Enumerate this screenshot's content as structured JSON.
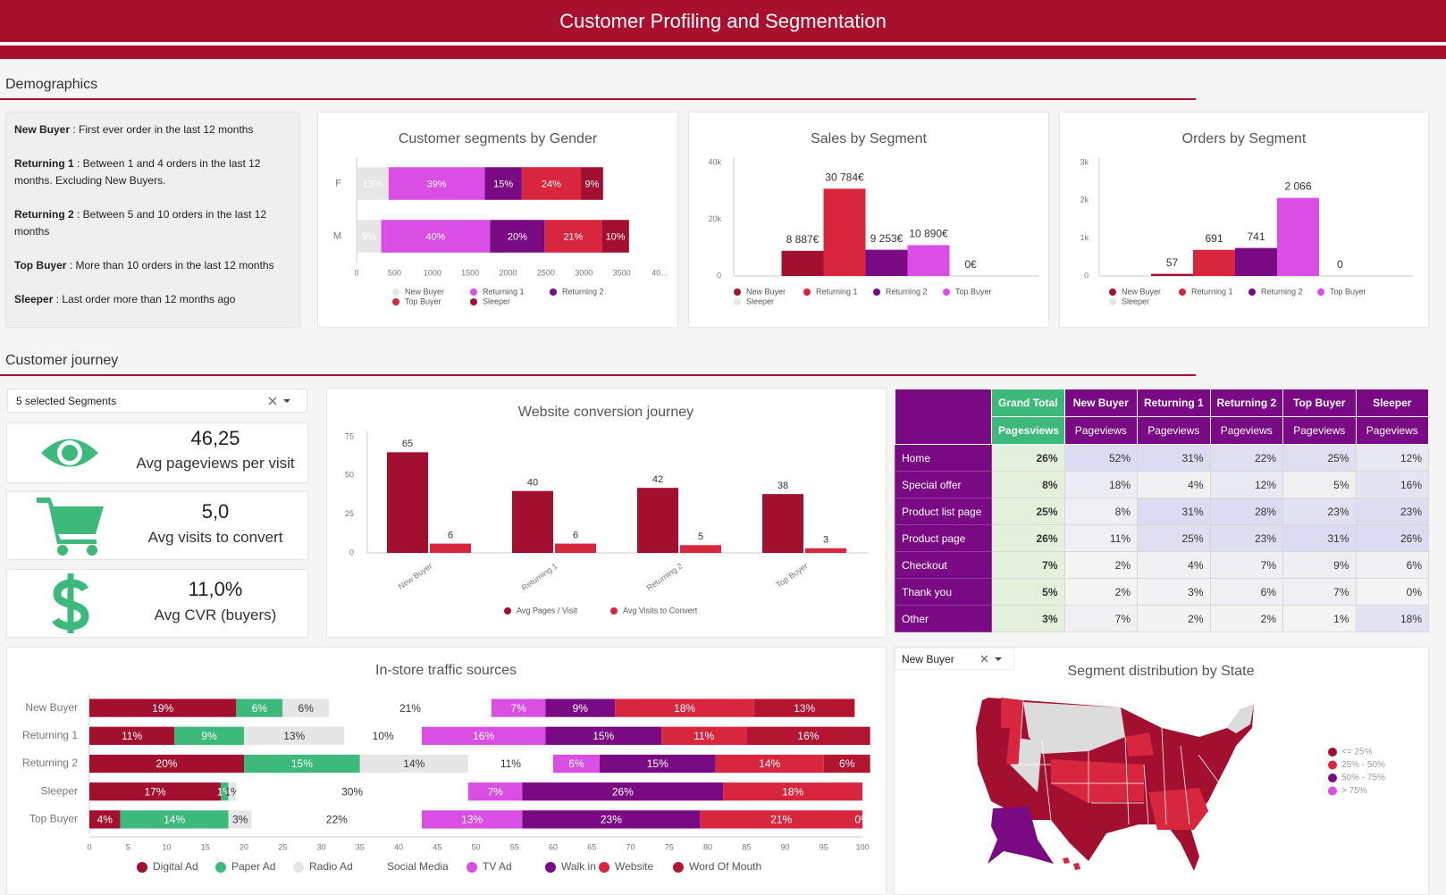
{
  "header": {
    "title": "Customer Profiling and Segmentation"
  },
  "sections": [
    "Demographics",
    "Customer journey"
  ],
  "definitions": [
    {
      "term": "New Buyer",
      "text": " : First ever order in the last 12 months"
    },
    {
      "term": "Returning 1",
      "text": " : Between 1 and 4 orders in the last 12 months. Excluding New Buyers."
    },
    {
      "term": "Returning 2",
      "text": " : Between 5 and 10 orders in the last 12 months"
    },
    {
      "term": "Top Buyer",
      "text": " : More than 10 orders in the last 12 months"
    },
    {
      "term": "Sleeper",
      "text": " : Last order more than 12 months ago"
    }
  ],
  "filters": {
    "segments": "5 selected Segments",
    "state_segment": "New Buyer"
  },
  "kpis": [
    {
      "value": "46,25",
      "label": "Avg pageviews per visit"
    },
    {
      "value": "5,0",
      "label": "Avg visits to convert"
    },
    {
      "value": "11,0%",
      "label": "Avg CVR (buyers)"
    }
  ],
  "chart_data": [
    {
      "type": "bar",
      "title": "Customer segments by Gender",
      "horizontal": true,
      "stacked": true,
      "categories": [
        "F",
        "M"
      ],
      "series": [
        {
          "name": "New Buyer",
          "color": "#e6e6e6",
          "values": [
            423,
            324
          ],
          "value_labels": [
            "13%",
            "9%"
          ]
        },
        {
          "name": "Returning 1",
          "color": "#d94fe3",
          "values": [
            1270,
            1439
          ],
          "value_labels": [
            "39%",
            "40%"
          ]
        },
        {
          "name": "Returning 2",
          "color": "#7a0a84",
          "values": [
            488,
            719
          ],
          "value_labels": [
            "15%",
            "20%"
          ]
        },
        {
          "name": "Top Buyer",
          "color": "#d7263d",
          "values": [
            781,
            755
          ],
          "value_labels": [
            "24%",
            "21%"
          ]
        },
        {
          "name": "Sleeper",
          "color": "#a3102f",
          "values": [
            293,
            360
          ],
          "value_labels": [
            "9%",
            "10%"
          ]
        }
      ],
      "xlim": [
        0,
        4000
      ],
      "xticks": [
        0,
        500,
        1000,
        1500,
        2000,
        2500,
        3000,
        3500,
        {
          "value": 4000,
          "label": "40..."
        }
      ],
      "legend": "bottom"
    },
    {
      "type": "bar",
      "title": "Sales by Segment",
      "categories": [
        "New Buyer",
        "Returning 1",
        "Returning 2",
        "Top Buyer",
        "Sleeper"
      ],
      "values": [
        8887,
        30784,
        9253,
        10890,
        0
      ],
      "value_labels": [
        "8 887€",
        "30 784€",
        "9 253€",
        "10 890€",
        "0€"
      ],
      "colors": [
        "#a3102f",
        "#d7263d",
        "#7a0a84",
        "#d94fe3",
        "#e6e6e6"
      ],
      "ylim": [
        0,
        40000
      ],
      "yticks": [
        0,
        {
          "value": 20000,
          "label": "20k"
        },
        {
          "value": 40000,
          "label": "40k"
        }
      ],
      "legend": "bottom"
    },
    {
      "type": "bar",
      "title": "Orders by Segment",
      "categories": [
        "New Buyer",
        "Returning 1",
        "Returning 2",
        "Top Buyer",
        "Sleeper"
      ],
      "values": [
        57,
        691,
        741,
        2066,
        0
      ],
      "value_labels": [
        "57",
        "691",
        "741",
        "2 066",
        "0"
      ],
      "colors": [
        "#a3102f",
        "#d7263d",
        "#7a0a84",
        "#d94fe3",
        "#e6e6e6"
      ],
      "ylim": [
        0,
        3000
      ],
      "yticks": [
        0,
        {
          "value": 1000,
          "label": "1k"
        },
        {
          "value": 2000,
          "label": "2k"
        },
        {
          "value": 3000,
          "label": "3k"
        }
      ],
      "legend": "bottom"
    },
    {
      "type": "bar",
      "title": "Website conversion journey",
      "categories": [
        "New Buyer",
        "Returning 1",
        "Returning 2",
        "Top Buyer"
      ],
      "series": [
        {
          "name": "Avg Pages / Visit",
          "color": "#a3102f",
          "values": [
            65,
            40,
            42,
            38
          ]
        },
        {
          "name": "Avg Visits to Convert",
          "color": "#d7263d",
          "values": [
            6,
            6,
            5,
            3
          ]
        }
      ],
      "ylim": [
        0,
        75
      ],
      "yticks": [
        0,
        25,
        50,
        75
      ],
      "legend": "bottom"
    },
    {
      "type": "bar",
      "title": "In-store traffic sources",
      "horizontal": true,
      "stacked": true,
      "categories": [
        "New Buyer",
        "Returning 1",
        "Returning 2",
        "Sleeper",
        "Top Buyer"
      ],
      "series": [
        {
          "name": "Digital Ad",
          "color": "#a3102f",
          "values": [
            19,
            11,
            20,
            17,
            4
          ],
          "value_labels": [
            "19%",
            "11%",
            "20%",
            "17%",
            "4%"
          ]
        },
        {
          "name": "Paper Ad",
          "color": "#3dba7b",
          "values": [
            6,
            9,
            15,
            1,
            14
          ],
          "value_labels": [
            "6%",
            "9%",
            "15%",
            "1%",
            "14%"
          ]
        },
        {
          "name": "Radio Ad",
          "color": "#e6e6e6",
          "values": [
            6,
            13,
            14,
            1,
            3
          ],
          "value_labels": [
            "6%",
            "13%",
            "14%",
            "1%",
            "3%"
          ]
        },
        {
          "name": "Social Media",
          "color": "#ffffff",
          "values": [
            21,
            10,
            11,
            30,
            22
          ],
          "value_labels": [
            "21%",
            "10%",
            "11%",
            "30%",
            "22%"
          ]
        },
        {
          "name": "TV Ad",
          "color": "#d94fe3",
          "values": [
            7,
            16,
            6,
            7,
            13
          ],
          "value_labels": [
            "7%",
            "16%",
            "6%",
            "7%",
            "13%"
          ]
        },
        {
          "name": "Walk in",
          "color": "#7a0a84",
          "values": [
            9,
            15,
            15,
            26,
            23
          ],
          "value_labels": [
            "9%",
            "15%",
            "15%",
            "26%",
            "23%"
          ]
        },
        {
          "name": "Website",
          "color": "#d7263d",
          "values": [
            18,
            11,
            14,
            18,
            21
          ],
          "value_labels": [
            "18%",
            "11%",
            "14%",
            "18%",
            "21%"
          ]
        },
        {
          "name": "Word Of Mouth",
          "color": "#b3142f",
          "values": [
            13,
            16,
            6,
            0,
            0
          ],
          "value_labels": [
            "13%",
            "16%",
            "6%",
            null,
            "0%"
          ]
        }
      ],
      "xlim": [
        0,
        100
      ],
      "xticks": [
        0,
        5,
        10,
        15,
        20,
        25,
        30,
        35,
        40,
        45,
        50,
        55,
        60,
        65,
        70,
        75,
        80,
        85,
        90,
        95,
        100
      ],
      "legend": "bottom"
    }
  ],
  "table": {
    "columns": [
      "Grand Total",
      "New Buyer",
      "Returning 1",
      "Returning 2",
      "Top Buyer",
      "Sleeper"
    ],
    "subheader": [
      "Pagesviews",
      "Pageviews",
      "Pageviews",
      "Pageviews",
      "Pageviews",
      "Pageviews"
    ],
    "rows": [
      {
        "label": "Home",
        "values": [
          "26%",
          "52%",
          "31%",
          "22%",
          "25%",
          "12%"
        ]
      },
      {
        "label": "Special offer",
        "values": [
          "8%",
          "18%",
          "4%",
          "12%",
          "5%",
          "16%"
        ]
      },
      {
        "label": "Product list page",
        "values": [
          "25%",
          "8%",
          "31%",
          "28%",
          "23%",
          "23%"
        ]
      },
      {
        "label": "Product page",
        "values": [
          "26%",
          "11%",
          "25%",
          "23%",
          "31%",
          "26%"
        ]
      },
      {
        "label": "Checkout",
        "values": [
          "7%",
          "2%",
          "4%",
          "7%",
          "9%",
          "6%"
        ]
      },
      {
        "label": "Thank you",
        "values": [
          "5%",
          "2%",
          "3%",
          "6%",
          "7%",
          "0%"
        ]
      },
      {
        "label": "Other",
        "values": [
          "3%",
          "7%",
          "2%",
          "2%",
          "1%",
          "18%"
        ]
      }
    ]
  },
  "map": {
    "title": "Segment distribution by State",
    "legend": [
      {
        "label": "<= 25%",
        "color": "#a3102f"
      },
      {
        "label": "25% - 50%",
        "color": "#d7263d"
      },
      {
        "label": "50% - 75%",
        "color": "#7a0a84"
      },
      {
        "label": "> 75%",
        "color": "#d94fe3"
      }
    ]
  }
}
